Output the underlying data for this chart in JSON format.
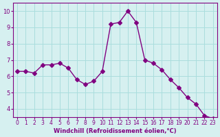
{
  "x": [
    0,
    1,
    2,
    3,
    4,
    5,
    6,
    7,
    8,
    9,
    10,
    11,
    12,
    13,
    14,
    15,
    16,
    17,
    18,
    19,
    20,
    21,
    22,
    23
  ],
  "y": [
    6.3,
    6.3,
    6.2,
    6.7,
    6.7,
    6.8,
    6.5,
    5.8,
    5.5,
    5.7,
    6.3,
    9.2,
    9.3,
    10.0,
    9.3,
    7.0,
    6.8,
    6.4,
    5.8,
    5.3,
    4.7,
    4.3,
    3.6,
    3.4
  ],
  "line_color": "#800080",
  "marker": "D",
  "marker_size": 3,
  "bg_color": "#d6f0f0",
  "grid_color": "#aadddd",
  "xlabel": "Windchill (Refroidissement éolien,°C)",
  "xlabel_color": "#800080",
  "ylim": [
    3.5,
    10.5
  ],
  "xlim": [
    -0.5,
    23.5
  ],
  "yticks": [
    4,
    5,
    6,
    7,
    8,
    9,
    10
  ],
  "xticks": [
    0,
    1,
    2,
    3,
    4,
    5,
    6,
    7,
    8,
    9,
    10,
    11,
    12,
    13,
    14,
    15,
    16,
    17,
    18,
    19,
    20,
    21,
    22,
    23
  ],
  "tick_color": "#800080",
  "spine_color": "#800080"
}
